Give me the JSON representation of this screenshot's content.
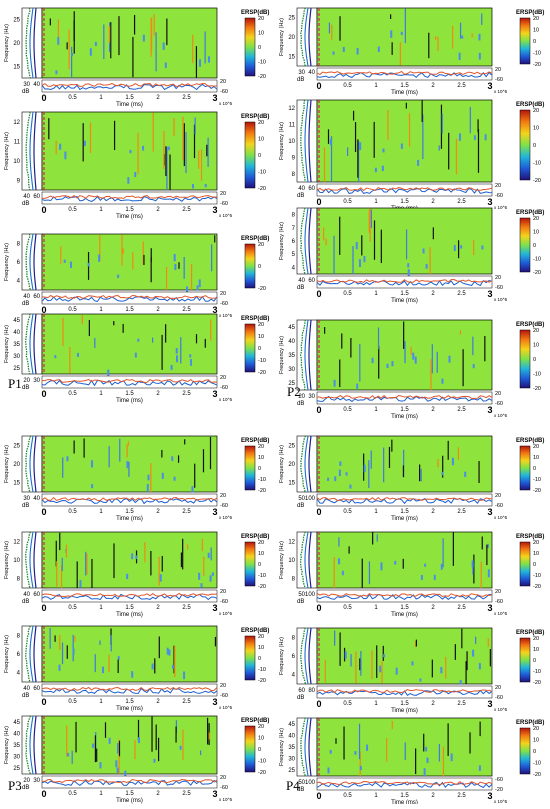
{
  "figure": {
    "groups": [
      {
        "label": "P1",
        "panels": [
          {
            "ylabel": "Frequency (Hz)",
            "yticks": [
              "15",
              "20",
              "25"
            ],
            "dbticks": [
              "30",
              "40"
            ],
            "dbunit": "dB",
            "xticks": [
              "0",
              "0.5",
              "1",
              "1.5",
              "2",
              "2.5",
              "3"
            ],
            "xlabel": "Time (ms)",
            "xexp": "x 10^5",
            "cbtitle": "ERSP(dB)",
            "cbticks": [
              "20",
              "10",
              "0",
              "-10",
              "-20"
            ],
            "sideticks": [
              "20",
              "-60"
            ]
          },
          {
            "ylabel": "Frequency (Hz)",
            "yticks": [
              "9",
              "10",
              "11",
              "12"
            ],
            "dbticks": [
              "40",
              "60"
            ],
            "dbunit": "dB",
            "xticks": [
              "0",
              "0.5",
              "1",
              "1.5",
              "2",
              "2.5",
              "3"
            ],
            "xlabel": "Time (ms)",
            "xexp": "x 10^5",
            "cbtitle": "ERSP(dB)",
            "cbticks": [
              "20",
              "10",
              "0",
              "-10",
              "-20"
            ],
            "sideticks": [
              "20",
              "-60"
            ]
          },
          {
            "ylabel": "Frequency (Hz)",
            "yticks": [
              "4",
              "6",
              "8"
            ],
            "dbticks": [
              "40",
              "60"
            ],
            "dbunit": "dB",
            "xticks": [
              "0",
              "0.5",
              "1",
              "1.5",
              "2",
              "2.5",
              "3"
            ],
            "xlabel": "",
            "xexp": "x 10^5",
            "cbtitle": "ERSP(dB)",
            "cbticks": [
              "20",
              "0",
              "-20"
            ],
            "sideticks": [
              "20",
              "-60"
            ]
          },
          {
            "ylabel": "Frequency (Hz)",
            "yticks": [
              "25",
              "30",
              "35",
              "40",
              "45"
            ],
            "dbticks": [
              "20",
              "30"
            ],
            "dbunit": "dB",
            "xticks": [
              "0",
              "0.5",
              "1",
              "1.5",
              "2",
              "2.5",
              "3"
            ],
            "xlabel": "Time (ms)",
            "xexp": "x 10^5",
            "cbtitle": "ERSP(dB)",
            "cbticks": [
              "20",
              "10",
              "0",
              "-10",
              "-20"
            ],
            "sideticks": [
              "20",
              "-60"
            ]
          }
        ]
      },
      {
        "label": "P2",
        "panels": [
          {
            "ylabel": "Frequency (Hz)",
            "yticks": [
              "15",
              "20",
              "25"
            ],
            "dbticks": [
              "30",
              "40"
            ],
            "dbunit": "dB",
            "xticks": [
              "0",
              "0.5",
              "1",
              "1.5",
              "2",
              "2.5",
              "3"
            ],
            "xlabel": "Time (ms)",
            "xexp": "x 10^5",
            "cbtitle": "ERSP(dB)",
            "cbticks": [
              "20",
              "10",
              "0",
              "-10",
              "-20"
            ],
            "sideticks": [
              "20",
              "-60"
            ]
          },
          {
            "ylabel": "Frequency (Hz)",
            "yticks": [
              "8",
              "9",
              "10",
              "11",
              "12"
            ],
            "dbticks": [
              "40",
              "60"
            ],
            "dbunit": "dB",
            "xticks": [
              "0",
              "0.5",
              "1",
              "1.5",
              "2",
              "2.5",
              "3"
            ],
            "xlabel": "Time (ms)",
            "xexp": "x 10^5",
            "cbtitle": "ERSP(dB)",
            "cbticks": [
              "20",
              "10",
              "0",
              "-10",
              "-20"
            ],
            "sideticks": [
              "20",
              "-60"
            ]
          },
          {
            "ylabel": "Frequency (Hz)",
            "yticks": [
              "4",
              "5",
              "6",
              "7",
              "8"
            ],
            "dbticks": [
              "40",
              "60"
            ],
            "dbunit": "dB",
            "xticks": [
              "0",
              "0.5",
              "1",
              "1.5",
              "2",
              "2.5",
              "3"
            ],
            "xlabel": "Time (ms)",
            "xexp": "x 10^5",
            "cbtitle": "ERSP(dB)",
            "cbticks": [
              "20",
              "10",
              "0",
              "-10",
              "-20"
            ],
            "sideticks": [
              "20",
              "-60"
            ]
          },
          {
            "ylabel": "Frequency (Hz)",
            "yticks": [
              "25",
              "30",
              "35",
              "40",
              "45"
            ],
            "dbticks": [
              "20",
              "30"
            ],
            "dbunit": "dB",
            "xticks": [
              "0",
              "0.5",
              "1",
              "1.5",
              "2",
              "2.5",
              "3"
            ],
            "xlabel": "Time (ms)",
            "xexp": "x 10^5",
            "cbtitle": "ERSP(dB)",
            "cbticks": [
              "20",
              "10",
              "0",
              "-10",
              "-20"
            ],
            "sideticks": [
              "20",
              "-60"
            ]
          }
        ]
      },
      {
        "label": "P3",
        "panels": [
          {
            "ylabel": "Frequency (Hz)",
            "yticks": [
              "15",
              "20",
              "25"
            ],
            "dbticks": [
              "30",
              "40"
            ],
            "dbunit": "dB",
            "xticks": [
              "0",
              "0.5",
              "1",
              "1.5",
              "2",
              "2.5",
              "3"
            ],
            "xlabel": "Time (ms)",
            "xexp": "x 10^5",
            "cbtitle": "ERSP(dB)",
            "cbticks": [
              "20",
              "10",
              "0",
              "-10",
              "-20"
            ],
            "sideticks": [
              "20",
              "-60"
            ]
          },
          {
            "ylabel": "Frequency (Hz)",
            "yticks": [
              "8",
              "10",
              "12"
            ],
            "dbticks": [
              "40",
              "60"
            ],
            "dbunit": "dB",
            "xticks": [
              "0",
              "0.5",
              "1",
              "1.5",
              "2",
              "2.5",
              "3"
            ],
            "xlabel": "Time (ms)",
            "xexp": "x 10^5",
            "cbtitle": "ERSP(dB)",
            "cbticks": [
              "20",
              "10",
              "0",
              "-10",
              "-20"
            ],
            "sideticks": [
              "20",
              "-60"
            ]
          },
          {
            "ylabel": "Frequency (Hz)",
            "yticks": [
              "4",
              "6",
              "8"
            ],
            "dbticks": [
              "40",
              "60"
            ],
            "dbunit": "dB",
            "xticks": [
              "0",
              "0.5",
              "1",
              "1.5",
              "2",
              "2.5",
              "3"
            ],
            "xlabel": "Time (ms)",
            "xexp": "x 10^5",
            "cbtitle": "ERSP(dB)",
            "cbticks": [
              "20",
              "10",
              "0",
              "-10",
              "-20"
            ],
            "sideticks": [
              "20",
              "-60"
            ]
          },
          {
            "ylabel": "Frequency (Hz)",
            "yticks": [
              "25",
              "30",
              "35",
              "40",
              "45"
            ],
            "dbticks": [
              "20",
              "30"
            ],
            "dbunit": "dB",
            "xticks": [
              "0",
              "0.5",
              "1",
              "1.5",
              "2",
              "2.5",
              "3"
            ],
            "xlabel": "Time (ms)",
            "xexp": "x 10^5",
            "cbtitle": "ERSP(dB)",
            "cbticks": [
              "20",
              "10",
              "0",
              "-10",
              "-20"
            ],
            "sideticks": [
              "20",
              "-60"
            ]
          }
        ]
      },
      {
        "label": "P4",
        "panels": [
          {
            "ylabel": "Frequency (Hz)",
            "yticks": [
              "15",
              "20",
              "25"
            ],
            "dbticks": [
              "50",
              "100"
            ],
            "dbunit": "dB",
            "xticks": [
              "0",
              "0.5",
              "1",
              "1.5",
              "2",
              "2.5",
              "3"
            ],
            "xlabel": "Time (ms)",
            "xexp": "x 10^5",
            "cbtitle": "ERSP(dB)",
            "cbticks": [
              "20",
              "10",
              "0",
              "-10",
              "-20"
            ],
            "sideticks": [
              "20",
              "-60"
            ]
          },
          {
            "ylabel": "Frequency (Hz)",
            "yticks": [
              "8",
              "10",
              "12"
            ],
            "dbticks": [
              "50",
              "100"
            ],
            "dbunit": "dB",
            "xticks": [
              "0",
              "0.5",
              "1",
              "1.5",
              "2",
              "2.5",
              "3"
            ],
            "xlabel": "Time (ms)",
            "xexp": "x 10^5",
            "cbtitle": "ERSP(dB)",
            "cbticks": [
              "20",
              "10",
              "0",
              "-10",
              "-20"
            ],
            "sideticks": [
              "20",
              "-60"
            ]
          },
          {
            "ylabel": "Frequency (Hz)",
            "yticks": [
              "4",
              "6",
              "8"
            ],
            "dbticks": [
              "60",
              "80"
            ],
            "dbunit": "dB",
            "xticks": [
              "0",
              "0.5",
              "1",
              "1.5",
              "2",
              "2.5",
              "3"
            ],
            "xlabel": "Time (ms)",
            "xexp": "x 10^5",
            "cbtitle": "ERSP(dB)",
            "cbticks": [
              "20",
              "10",
              "0",
              "-10",
              "-20"
            ],
            "sideticks": [
              "20",
              "-60"
            ]
          },
          {
            "ylabel": "Frequency (Hz)",
            "yticks": [
              "25",
              "30",
              "35",
              "40",
              "45"
            ],
            "dbticks": [
              "50",
              "100"
            ],
            "dbunit": "dB",
            "xticks": [
              "0",
              "0.5",
              "1",
              "1.5",
              "2",
              "2.5",
              "3"
            ],
            "xlabel": "Time (ms)",
            "xexp": "x 10^5",
            "cbtitle": "ERSP(dB)",
            "cbticks": [
              "20",
              "10",
              "0",
              "-10",
              "-20"
            ],
            "sideticks": [
              "-60",
              "-20"
            ]
          }
        ]
      }
    ]
  },
  "chart_data": {
    "type": "heatmap",
    "description_free": true,
    "x_unit_label": "Time (ms)",
    "x_range": [
      0,
      300000
    ],
    "colorbar_label": "ERSP(dB)",
    "colorbar_range": [
      -20,
      20
    ],
    "colormap": [
      "#22117a",
      "#1f5bd8",
      "#22b6d8",
      "#7fe14a",
      "#f3d41c",
      "#f27a12",
      "#b5140c"
    ],
    "background_value_color": "#8ee33c",
    "event_line_color": "#d81b60"
  }
}
